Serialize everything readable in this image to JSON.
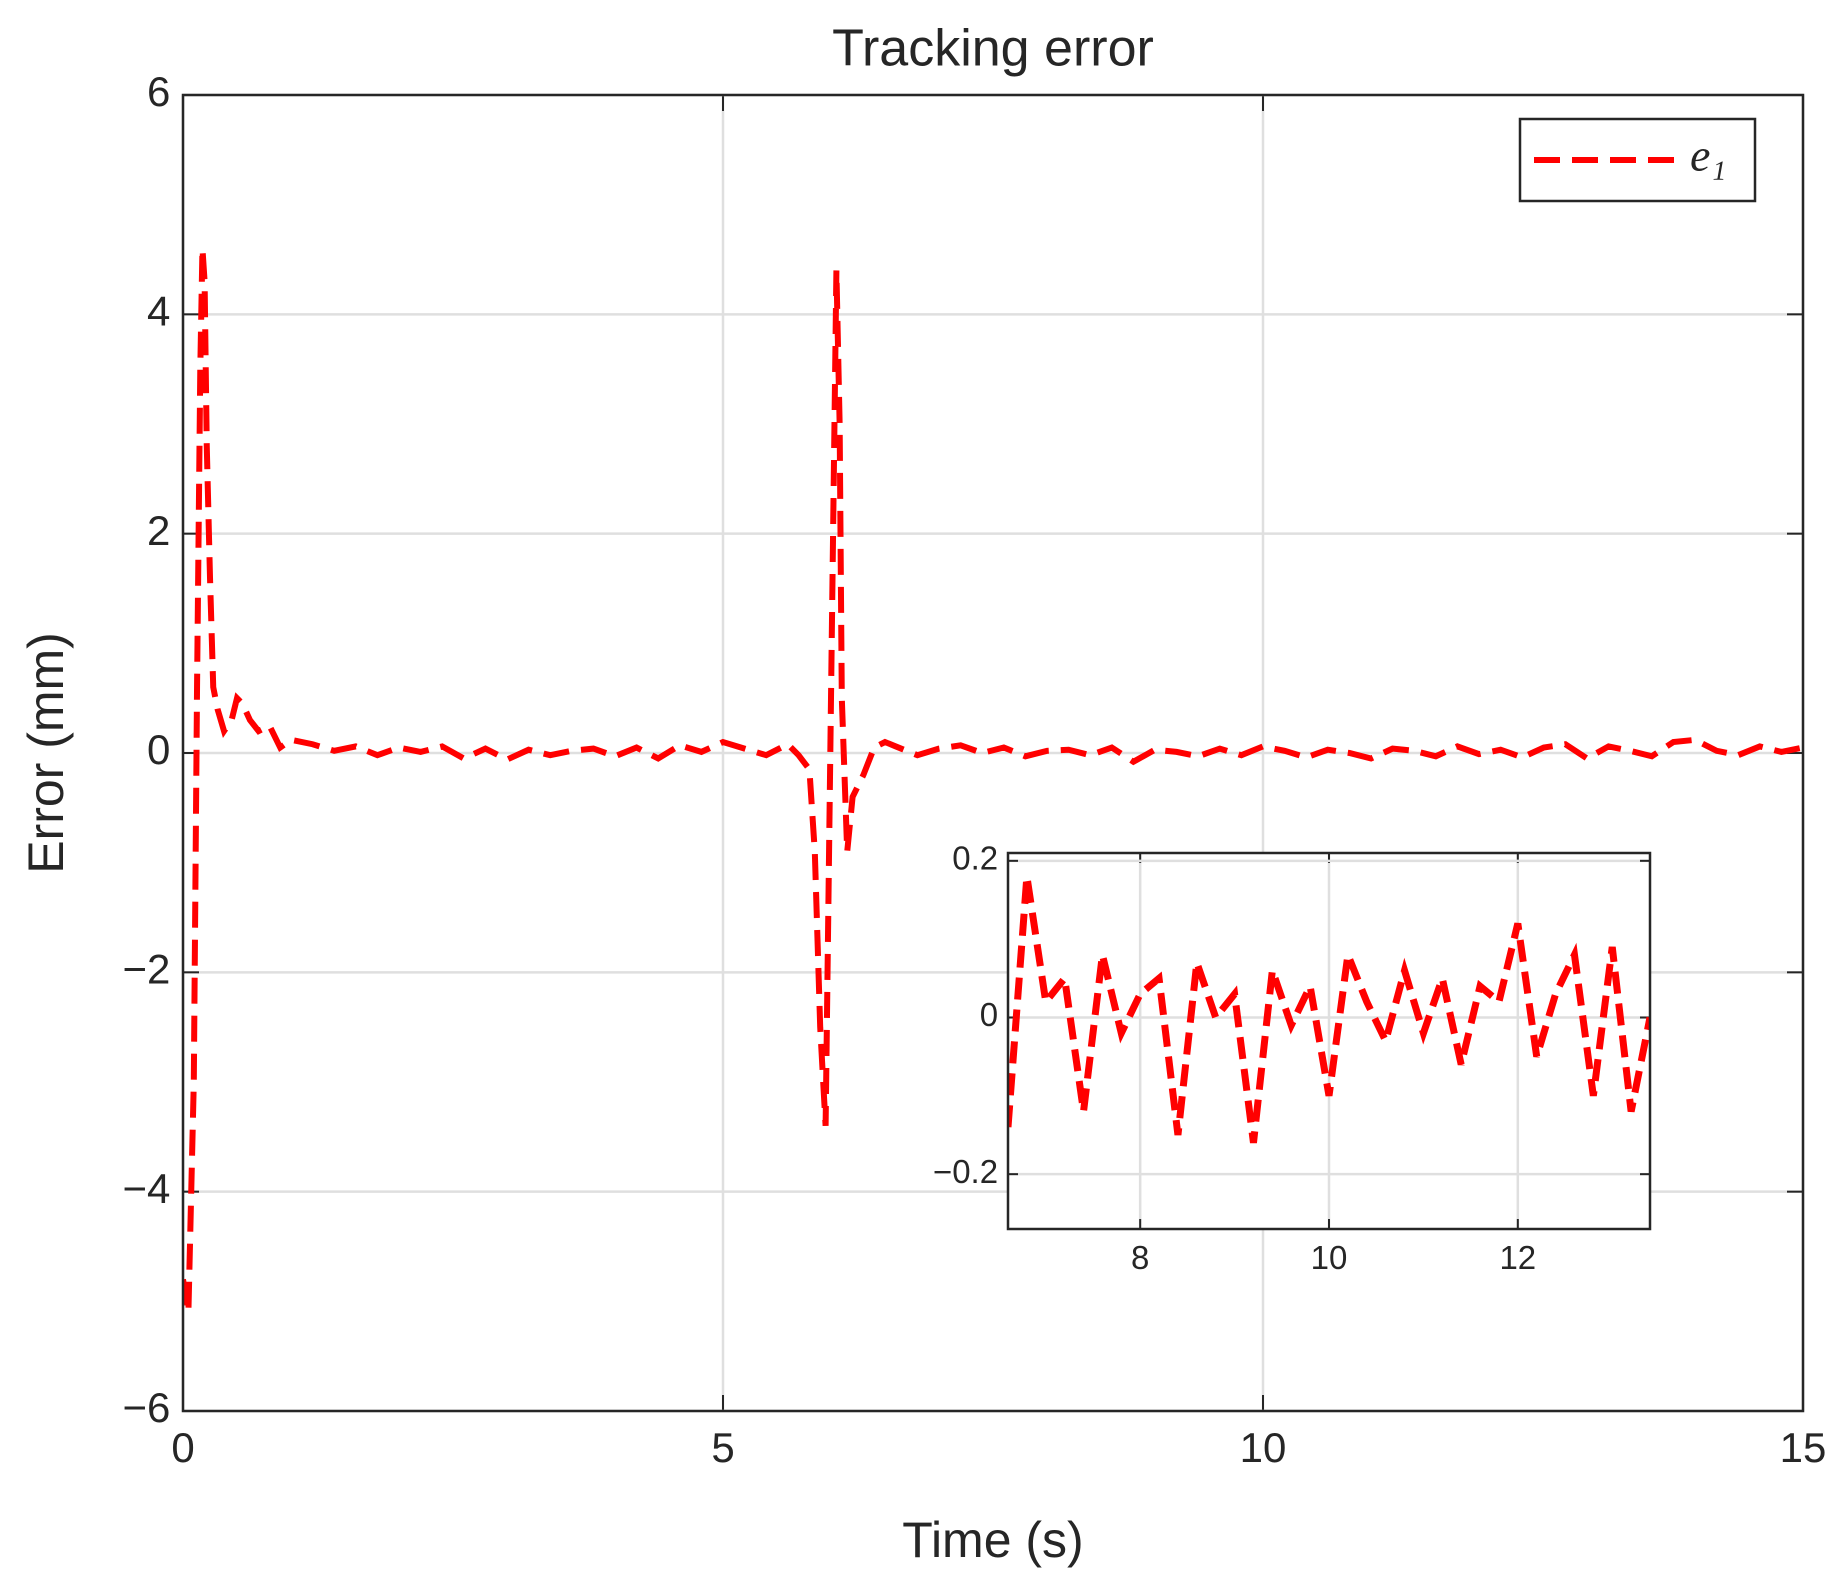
{
  "chart_data": [
    {
      "type": "line",
      "title": "Tracking error",
      "xlabel": "Time (s)",
      "ylabel": "Error (mm)",
      "x": [
        0,
        0.05,
        0.1,
        0.13,
        0.16,
        0.18,
        0.2,
        0.22,
        0.25,
        0.28,
        0.32,
        0.38,
        0.45,
        0.5,
        0.55,
        0.62,
        0.7,
        0.8,
        0.9,
        1.0,
        1.2,
        1.4,
        1.6,
        1.8,
        2,
        2.2,
        2.4,
        2.6,
        2.8,
        3,
        3.2,
        3.4,
        3.6,
        3.8,
        4,
        4.2,
        4.4,
        4.6,
        4.8,
        5,
        5.2,
        5.4,
        5.6,
        5.7,
        5.8,
        5.85,
        5.9,
        5.95,
        6.0,
        6.05,
        6.08,
        6.1,
        6.15,
        6.2,
        6.3,
        6.4,
        6.5,
        6.6,
        6.8,
        7,
        7.2,
        7.4,
        7.6,
        7.8,
        8,
        8.2,
        8.4,
        8.6,
        8.8,
        9,
        9.2,
        9.4,
        9.6,
        9.8,
        10,
        10.2,
        10.4,
        10.6,
        10.8,
        11,
        11.2,
        11.4,
        11.6,
        11.8,
        12,
        12.2,
        12.4,
        12.6,
        12.8,
        13,
        13.2,
        13.4,
        13.6,
        13.8,
        14,
        14.2,
        14.4,
        14.6,
        14.8,
        15
      ],
      "series": [
        {
          "name": "e₁",
          "color": "#ff0000",
          "values": [
            -4.8,
            -5.1,
            -3,
            0.6,
            3.5,
            4.6,
            4.3,
            2.8,
            1.6,
            0.6,
            0.4,
            0.2,
            0.3,
            0.5,
            0.45,
            0.3,
            0.2,
            0.25,
            0.05,
            0.12,
            0.08,
            0.02,
            0.06,
            -0.02,
            0.05,
            0.01,
            0.06,
            -0.05,
            0.04,
            -0.06,
            0.03,
            -0.02,
            0.02,
            0.04,
            -0.03,
            0.05,
            -0.05,
            0.07,
            0.01,
            0.1,
            0.04,
            -0.02,
            0.08,
            -0.02,
            -0.15,
            -0.9,
            -2.5,
            -3.4,
            0.5,
            4.4,
            3.0,
            0.5,
            -0.9,
            -0.4,
            -0.2,
            0.05,
            0.1,
            0.06,
            -0.02,
            0.04,
            0.07,
            0.0,
            0.05,
            -0.03,
            0.02,
            0.03,
            -0.02,
            0.05,
            -0.08,
            0.03,
            0.01,
            -0.03,
            0.04,
            -0.02,
            0.06,
            0.02,
            -0.04,
            0.03,
            0.0,
            -0.05,
            0.04,
            0.02,
            -0.03,
            0.06,
            -0.01,
            0.03,
            -0.04,
            0.05,
            0.08,
            -0.05,
            0.06,
            0.02,
            -0.03,
            0.1,
            0.12,
            0.02,
            -0.02,
            0.06,
            0.01,
            0.05
          ]
        }
      ],
      "xlim": [
        0,
        15
      ],
      "ylim": [
        -6,
        6
      ],
      "xticks": [
        0,
        5,
        10,
        15
      ],
      "yticks": [
        {
          "value": -6,
          "label": "−6"
        },
        {
          "value": -4,
          "label": "−4"
        },
        {
          "value": -2,
          "label": "−2"
        },
        0,
        2,
        4,
        6
      ],
      "grid": true,
      "legend": "upper right"
    },
    {
      "type": "line",
      "x": [
        6.6,
        6.8,
        7.0,
        7.2,
        7.4,
        7.6,
        7.8,
        8.0,
        8.2,
        8.4,
        8.6,
        8.8,
        9.0,
        9.2,
        9.4,
        9.6,
        9.8,
        10.0,
        10.2,
        10.4,
        10.6,
        10.8,
        11.0,
        11.2,
        11.4,
        11.6,
        11.8,
        12.0,
        12.2,
        12.4,
        12.6,
        12.8,
        13.0,
        13.2,
        13.4
      ],
      "series": [
        {
          "color": "#ff0000",
          "values": [
            -0.14,
            0.18,
            0.02,
            0.05,
            -0.12,
            0.08,
            -0.02,
            0.03,
            0.05,
            -0.15,
            0.07,
            0.0,
            0.03,
            -0.16,
            0.06,
            -0.01,
            0.04,
            -0.1,
            0.08,
            0.02,
            -0.03,
            0.06,
            -0.02,
            0.05,
            -0.06,
            0.04,
            0.02,
            0.12,
            -0.05,
            0.03,
            0.08,
            -0.1,
            0.09,
            -0.12,
            0.0
          ]
        }
      ],
      "xlim": [
        6.6,
        13.4
      ],
      "ylim": [
        -0.27,
        0.21
      ],
      "xticks": [
        8,
        10,
        12
      ],
      "yticks": [
        {
          "value": -0.2,
          "label": "−0.2"
        },
        0,
        0.2
      ],
      "grid": true
    }
  ]
}
